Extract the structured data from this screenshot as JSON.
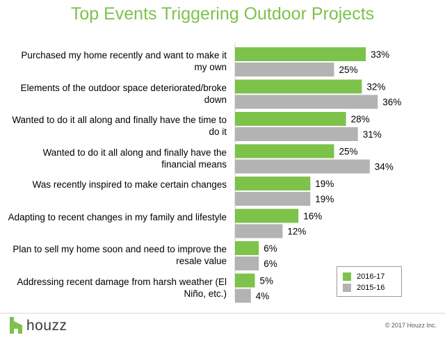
{
  "chart_data": {
    "type": "bar",
    "orientation": "horizontal",
    "title": "Top Events Triggering Outdoor Projects",
    "categories": [
      "Purchased my home recently and want to make it my own",
      "Elements of the outdoor space deteriorated/broke down",
      "Wanted to do it all along and finally have the time to do it",
      "Wanted to do it all along and finally have the financial means",
      "Was recently inspired to make certain changes",
      "Adapting to recent changes in my family and lifestyle",
      "Plan to sell my home soon and need to improve the resale value",
      "Addressing recent damage from harsh weather (El Niño, etc.)"
    ],
    "series": [
      {
        "name": "2016-17",
        "color": "#7dc24b",
        "values": [
          33,
          32,
          28,
          25,
          19,
          16,
          6,
          5
        ]
      },
      {
        "name": "2015-16",
        "color": "#b3b3b3",
        "values": [
          25,
          36,
          31,
          34,
          19,
          12,
          6,
          4
        ]
      }
    ],
    "value_suffix": "%",
    "xlim": [
      0,
      40
    ],
    "grid": false,
    "legend_position": "bottom-right"
  },
  "footer": {
    "logo_text": "houzz",
    "copyright": "© 2017 Houzz Inc."
  }
}
